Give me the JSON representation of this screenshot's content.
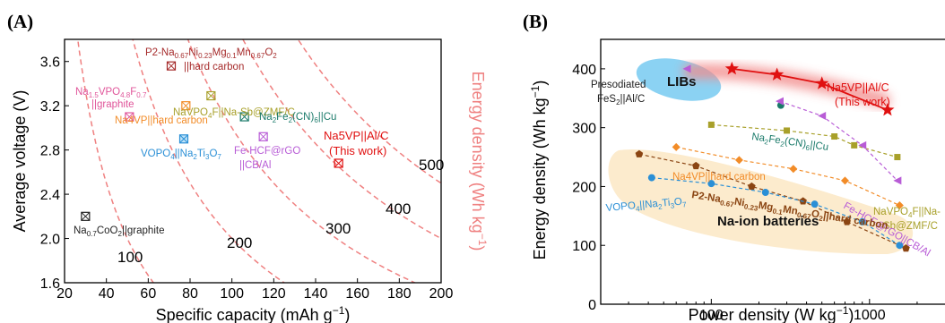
{
  "chart_data": [
    {
      "type": "scatter",
      "panel": "(A)",
      "xlabel": "Specific capacity (mAh g−1)",
      "xlabel_parts": [
        "Specific capacity (mAh g",
        "−1",
        ")"
      ],
      "ylabel": "Average voltage (V)",
      "ylabel_right": "Energy density (Wh kg−1)",
      "ylabel_right_parts": [
        "Energy density (Wh kg",
        "−1",
        ")"
      ],
      "xlim": [
        20,
        200
      ],
      "ylim": [
        1.6,
        3.8
      ],
      "xticks": [
        20,
        40,
        60,
        80,
        100,
        120,
        140,
        160,
        180,
        200
      ],
      "yticks": [
        1.6,
        2.0,
        2.4,
        2.8,
        3.2,
        3.6
      ],
      "ytick_labels": [
        "1.6",
        "2.0",
        "2.4",
        "2.8",
        "3.2",
        "3.6"
      ],
      "iso_energy_curves": [
        {
          "label": "100",
          "value": 100
        },
        {
          "label": "200",
          "value": 200
        },
        {
          "label": "300",
          "value": 300
        },
        {
          "label": "400",
          "value": 400
        },
        {
          "label": "500",
          "value": 500
        }
      ],
      "points": [
        {
          "label": "Na0.7CoO2||graphite",
          "x": 30,
          "y": 2.2,
          "color": "#222222"
        },
        {
          "label": "Na1.5VPO4.8F0.7 ||graphite",
          "x": 51,
          "y": 3.1,
          "color": "#e0559a"
        },
        {
          "label": "P2-Na0.67Ni0.23Mg0.1Mn0.67O2 ||hard carbon",
          "x": 71,
          "y": 3.56,
          "color": "#a52a2a"
        },
        {
          "label": "Na4VP||hard carbon",
          "x": 78,
          "y": 3.2,
          "color": "#f28c28"
        },
        {
          "label": "NaVPO4F||Na-Sb@ZMF/C",
          "x": 90,
          "y": 3.29,
          "color": "#a8a02a"
        },
        {
          "label": "VOPO4||Na2Ti3O7",
          "x": 77,
          "y": 2.9,
          "color": "#2a8fd6"
        },
        {
          "label": "Na2Fe2(CN)6||Cu",
          "x": 106,
          "y": 3.1,
          "color": "#1a7a6a"
        },
        {
          "label": "Fe-HCF@rGO ||CB/Al",
          "x": 115,
          "y": 2.92,
          "color": "#b85cd6"
        },
        {
          "label": "Na5VP||Al/C (This work)",
          "x": 151,
          "y": 2.68,
          "color": "#e01010"
        }
      ]
    },
    {
      "type": "line",
      "panel": "(B)",
      "xlabel": "Power density (W kg−1)",
      "xlabel_parts": [
        "Power density (W kg",
        "−1",
        ")"
      ],
      "ylabel": "Energy density (Wh kg−1)",
      "ylabel_parts": [
        "Energy density (Wh kg",
        "−1",
        ")"
      ],
      "xscale": "log",
      "xlim": [
        20,
        4000
      ],
      "ylim": [
        0,
        450
      ],
      "xticks": [
        100,
        1000
      ],
      "xtick_labels": [
        "100",
        "1000"
      ],
      "yticks": [
        0,
        100,
        200,
        300,
        400
      ],
      "regions": [
        {
          "label": "LIBs",
          "color": "#7ecdf2"
        },
        {
          "label": "Na-ion batteries",
          "color": "#fbe8c4"
        }
      ],
      "series": [
        {
          "name": "Na5VP||Al/C (This work)",
          "color": "#e01010",
          "marker": "star",
          "x": [
            135,
            260,
            500,
            1300
          ],
          "y": [
            400,
            390,
            375,
            330
          ]
        },
        {
          "name": "Na2Fe2(CN)6||Cu",
          "color": "#1a7a6a",
          "marker": "circle",
          "x": [
            275
          ],
          "y": [
            338
          ]
        },
        {
          "name": "NaVPO4F||Na-Sb@ZMF/C",
          "color": "#a8a02a",
          "marker": "square",
          "x": [
            100,
            300,
            600,
            800,
            1500
          ],
          "y": [
            305,
            295,
            285,
            270,
            250
          ]
        },
        {
          "name": "Fe-HCF@rGO||CB/Al",
          "color": "#b85cd6",
          "marker": "triangle-left",
          "x": [
            270,
            500,
            900,
            1500
          ],
          "y": [
            345,
            320,
            270,
            210
          ]
        },
        {
          "name": "Na4VP||hard carbon",
          "color": "#f28c28",
          "marker": "diamond",
          "x": [
            60,
            150,
            330,
            700,
            1550
          ],
          "y": [
            267,
            245,
            230,
            210,
            168
          ]
        },
        {
          "name": "P2-Na0.67Ni0.23Mg0.1Mn0.67O2||hard carbon",
          "color": "#8b4513",
          "marker": "pentagon",
          "x": [
            35,
            80,
            180,
            380,
            720,
            1700
          ],
          "y": [
            255,
            235,
            200,
            175,
            140,
            95
          ]
        },
        {
          "name": "VOPO4||Na2Ti3O7",
          "color": "#2a8fd6",
          "marker": "circle",
          "x": [
            42,
            100,
            220,
            450,
            900,
            1550
          ],
          "y": [
            215,
            205,
            190,
            170,
            140,
            100
          ]
        },
        {
          "name": "Presodiated FeS2||Al/C",
          "color": "#b85cd6",
          "marker": "triangle-left",
          "x": [
            70
          ],
          "y": [
            400
          ]
        }
      ]
    }
  ]
}
